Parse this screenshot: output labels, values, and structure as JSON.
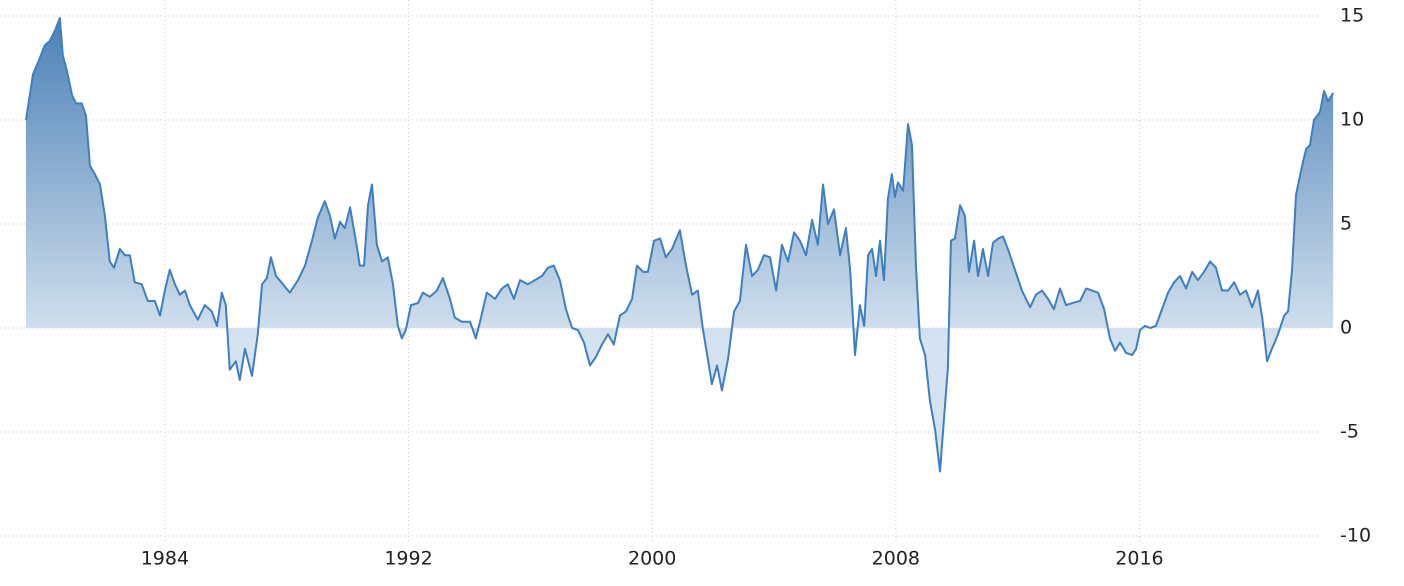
{
  "chart_data": {
    "type": "area",
    "x": [
      1979.44,
      1979.67,
      1979.9,
      1980.06,
      1980.22,
      1980.39,
      1980.55,
      1980.65,
      1980.78,
      1980.95,
      1981.08,
      1981.27,
      1981.41,
      1981.54,
      1981.7,
      1981.87,
      1982.03,
      1982.19,
      1982.33,
      1982.52,
      1982.69,
      1982.85,
      1983.01,
      1983.24,
      1983.44,
      1983.67,
      1983.84,
      1984.0,
      1984.16,
      1984.33,
      1984.49,
      1984.66,
      1984.82,
      1985.08,
      1985.31,
      1985.54,
      1985.71,
      1985.87,
      1986.0,
      1986.13,
      1986.33,
      1986.46,
      1986.63,
      1986.86,
      1987.05,
      1987.19,
      1987.35,
      1987.48,
      1987.65,
      1987.88,
      1988.1,
      1988.37,
      1988.6,
      1988.83,
      1989.02,
      1989.25,
      1989.42,
      1989.58,
      1989.75,
      1989.91,
      1990.08,
      1990.27,
      1990.4,
      1990.54,
      1990.67,
      1990.8,
      1990.96,
      1991.13,
      1991.32,
      1991.49,
      1991.65,
      1991.78,
      1991.91,
      1992.08,
      1992.31,
      1992.47,
      1992.7,
      1992.93,
      1993.13,
      1993.36,
      1993.52,
      1993.75,
      1994.02,
      1994.21,
      1994.38,
      1994.57,
      1994.84,
      1995.07,
      1995.26,
      1995.46,
      1995.66,
      1995.92,
      1996.15,
      1996.38,
      1996.58,
      1996.77,
      1996.97,
      1997.17,
      1997.37,
      1997.56,
      1997.76,
      1997.96,
      1998.15,
      1998.35,
      1998.55,
      1998.74,
      1998.94,
      1999.14,
      1999.34,
      1999.5,
      1999.7,
      1999.86,
      2000.06,
      2000.26,
      2000.45,
      2000.65,
      2000.91,
      2001.11,
      2001.31,
      2001.5,
      2001.67,
      2001.83,
      2001.96,
      2002.13,
      2002.29,
      2002.49,
      2002.69,
      2002.88,
      2003.08,
      2003.28,
      2003.47,
      2003.67,
      2003.87,
      2004.07,
      2004.26,
      2004.46,
      2004.66,
      2004.85,
      2005.05,
      2005.25,
      2005.44,
      2005.61,
      2005.77,
      2005.97,
      2006.17,
      2006.36,
      2006.5,
      2006.66,
      2006.82,
      2006.96,
      2007.09,
      2007.22,
      2007.35,
      2007.48,
      2007.61,
      2007.74,
      2007.87,
      2007.97,
      2008.07,
      2008.24,
      2008.4,
      2008.53,
      2008.66,
      2008.79,
      2008.96,
      2009.12,
      2009.29,
      2009.45,
      2009.58,
      2009.71,
      2009.81,
      2009.94,
      2010.11,
      2010.27,
      2010.4,
      2010.57,
      2010.7,
      2010.86,
      2011.03,
      2011.19,
      2011.36,
      2011.52,
      2011.68,
      2011.91,
      2012.14,
      2012.41,
      2012.6,
      2012.8,
      2013.0,
      2013.19,
      2013.39,
      2013.59,
      2013.79,
      2014.05,
      2014.25,
      2014.44,
      2014.64,
      2014.84,
      2015.03,
      2015.2,
      2015.36,
      2015.56,
      2015.76,
      2015.89,
      2016.02,
      2016.18,
      2016.35,
      2016.54,
      2016.74,
      2016.94,
      2017.14,
      2017.33,
      2017.53,
      2017.73,
      2017.92,
      2018.12,
      2018.32,
      2018.51,
      2018.71,
      2018.91,
      2019.11,
      2019.3,
      2019.5,
      2019.7,
      2019.89,
      2020.03,
      2020.19,
      2020.35,
      2020.55,
      2020.75,
      2020.88,
      2021.01,
      2021.14,
      2021.34,
      2021.47,
      2021.6,
      2021.73,
      2021.93,
      2022.06,
      2022.19,
      2022.36
    ],
    "values": [
      10.0,
      12.2,
      13.0,
      13.6,
      13.8,
      14.3,
      14.9,
      13.1,
      12.4,
      11.2,
      10.8,
      10.8,
      10.2,
      7.8,
      7.4,
      6.9,
      5.4,
      3.2,
      2.9,
      3.8,
      3.5,
      3.5,
      2.2,
      2.1,
      1.3,
      1.3,
      0.6,
      1.8,
      2.8,
      2.1,
      1.6,
      1.8,
      1.1,
      0.4,
      1.1,
      0.8,
      0.1,
      1.7,
      1.1,
      -2.0,
      -1.6,
      -2.5,
      -1.0,
      -2.3,
      -0.3,
      2.1,
      2.4,
      3.4,
      2.5,
      2.1,
      1.7,
      2.3,
      3.0,
      4.2,
      5.3,
      6.1,
      5.4,
      4.3,
      5.1,
      4.8,
      5.8,
      4.2,
      3.0,
      3.0,
      5.9,
      6.9,
      4.0,
      3.2,
      3.4,
      2.1,
      0.1,
      -0.5,
      -0.1,
      1.1,
      1.2,
      1.7,
      1.5,
      1.8,
      2.4,
      1.4,
      0.5,
      0.3,
      0.3,
      -0.5,
      0.5,
      1.7,
      1.4,
      1.9,
      2.1,
      1.4,
      2.3,
      2.1,
      2.3,
      2.5,
      2.9,
      3.0,
      2.3,
      0.9,
      0,
      -0.1,
      -0.7,
      -1.8,
      -1.4,
      -0.8,
      -0.3,
      -0.8,
      0.6,
      0.8,
      1.4,
      3.0,
      2.7,
      2.7,
      4.2,
      4.3,
      3.4,
      3.8,
      4.7,
      3.0,
      1.6,
      1.8,
      -0.1,
      -1.5,
      -2.7,
      -1.8,
      -3.0,
      -1.5,
      0.8,
      1.3,
      4.0,
      2.5,
      2.8,
      3.5,
      3.4,
      1.8,
      4.0,
      3.2,
      4.6,
      4.2,
      3.5,
      5.2,
      4.0,
      6.9,
      5.0,
      5.7,
      3.5,
      4.8,
      2.8,
      -1.3,
      1.1,
      0.1,
      3.5,
      3.8,
      2.5,
      4.2,
      2.3,
      6.2,
      7.4,
      6.3,
      7.0,
      6.6,
      9.8,
      8.8,
      3.0,
      -0.5,
      -1.3,
      -3.5,
      -4.9,
      -6.9,
      -4.4,
      -1.9,
      4.2,
      4.3,
      5.9,
      5.4,
      2.7,
      4.2,
      2.5,
      3.8,
      2.5,
      4.1,
      4.3,
      4.4,
      3.8,
      2.8,
      1.8,
      1.0,
      1.6,
      1.8,
      1.4,
      0.9,
      1.9,
      1.1,
      1.2,
      1.3,
      1.9,
      1.8,
      1.7,
      0.9,
      -0.5,
      -1.1,
      -0.7,
      -1.2,
      -1.3,
      -1.0,
      -0.1,
      0.1,
      0,
      0.1,
      0.9,
      1.7,
      2.2,
      2.5,
      1.9,
      2.7,
      2.3,
      2.7,
      3.2,
      2.9,
      1.8,
      1.8,
      2.2,
      1.6,
      1.8,
      1.0,
      1.8,
      0.5,
      -1.6,
      -1.0,
      -0.3,
      0.6,
      0.8,
      2.8,
      6.4,
      7.8,
      8.6,
      8.8,
      10.0,
      10.4,
      11.4,
      10.9,
      11.3
    ],
    "color": "#3f7fbf",
    "xlim": [
      1979.44,
      2022.42
    ],
    "xticks": [
      1984,
      1992,
      2000,
      2008,
      2016
    ],
    "ylim": [
      -10,
      15
    ],
    "yticks": [
      -10,
      -5,
      0,
      5,
      10,
      15
    ],
    "grid": true
  }
}
